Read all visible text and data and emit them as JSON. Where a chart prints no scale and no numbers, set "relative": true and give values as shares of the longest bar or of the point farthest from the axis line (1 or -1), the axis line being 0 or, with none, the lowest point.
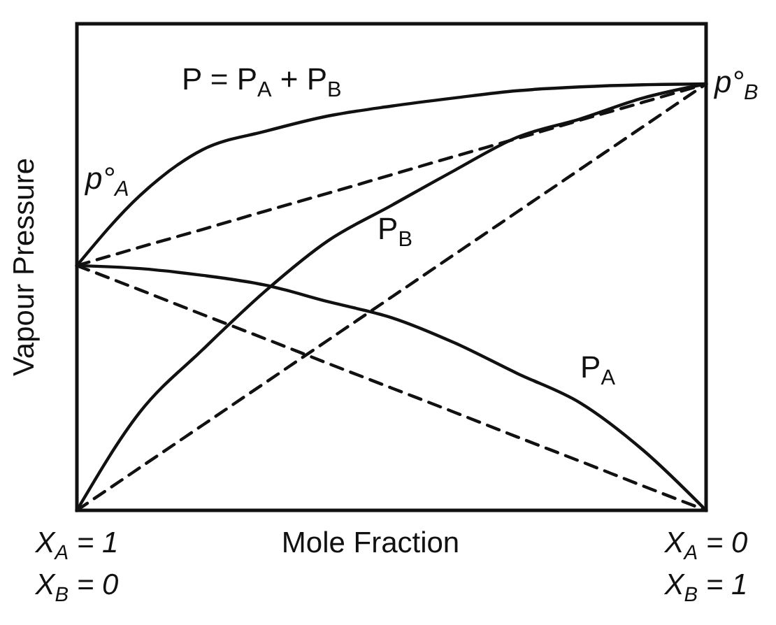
{
  "chart_data": {
    "type": "line",
    "relative": true,
    "ylabel": "Vapour Pressure",
    "xlabel": "Mole Fraction",
    "categories": [
      "X$_{A}$ = 1\nX$_{B}$ = 0",
      null,
      null,
      null,
      null,
      null,
      null,
      null,
      null,
      null,
      "X$_{A}$ = 0\nX$_{B}$ = 1"
    ],
    "series": [
      {
        "name": "P = P$_{A}$ + P$_{B}$",
        "color": "#111111",
        "values": [
          0.574,
          0.738,
          0.846,
          0.889,
          0.925,
          0.948,
          0.967,
          0.984,
          0.993,
          0.998,
          1
        ]
      },
      {
        "name": "P$_{B}$",
        "color": "#111111",
        "values": [
          0,
          0.23,
          0.377,
          0.515,
          0.633,
          0.715,
          0.797,
          0.875,
          0.918,
          0.967,
          1
        ]
      },
      {
        "name": "P$_{A}$",
        "color": "#111111",
        "values": [
          0.574,
          0.567,
          0.551,
          0.528,
          0.489,
          0.452,
          0.393,
          0.321,
          0.252,
          0.141,
          0
        ]
      },
      {
        "color": "#111111",
        "line_style": "dashed",
        "values": [
          0.574,
          0.617,
          0.659,
          0.702,
          0.744,
          0.787,
          0.83,
          0.872,
          0.915,
          0.957,
          1
        ]
      },
      {
        "color": "#111111",
        "line_style": "dashed",
        "values": [
          0,
          0.1,
          0.2,
          0.3,
          0.4,
          0.5,
          0.6,
          0.7,
          0.8,
          0.9,
          1
        ]
      },
      {
        "color": "#111111",
        "line_style": "dashed",
        "values": [
          0.574,
          0.517,
          0.459,
          0.402,
          0.344,
          0.287,
          0.23,
          0.172,
          0.115,
          0.057,
          0
        ]
      }
    ],
    "annotations": [
      {
        "text": "p°$_{A}$",
        "x": "X$_{A}$ = 1\nX$_{B}$ = 0",
        "y": 0.574
      },
      {
        "text": "p°$_{B}$",
        "x": "X$_{A}$ = 0\nX$_{B}$ = 1",
        "y": 1
      }
    ]
  }
}
